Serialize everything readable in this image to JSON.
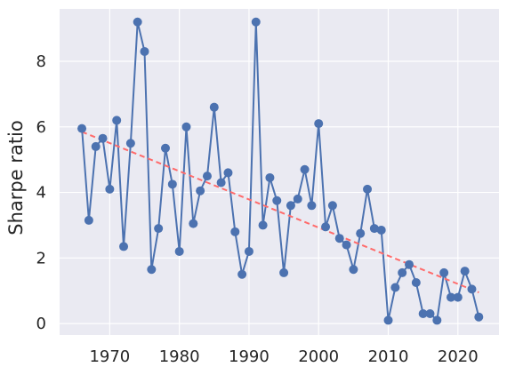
{
  "chart_data": {
    "type": "scatter",
    "title": "",
    "xlabel": "",
    "ylabel": "Sharpe ratio",
    "xlim": [
      1962.8,
      2025.9
    ],
    "ylim": [
      -0.35,
      9.6
    ],
    "x_ticks": [
      1970,
      1980,
      1990,
      2000,
      2010,
      2020
    ],
    "y_ticks": [
      0,
      2,
      4,
      6,
      8
    ],
    "grid": true,
    "legend": "none",
    "colors": {
      "series": "#4c72b0",
      "trend": "#ff6b6b",
      "background": "#eaeaf2",
      "grid": "#ffffff"
    },
    "series": [
      {
        "style": "line-with-markers",
        "x": [
          1966,
          1967,
          1968,
          1969,
          1970,
          1971,
          1972,
          1973,
          1974,
          1975,
          1976,
          1977,
          1978,
          1979,
          1980,
          1981,
          1982,
          1983,
          1984,
          1985,
          1986,
          1987,
          1988,
          1989,
          1990,
          1991,
          1992,
          1993,
          1994,
          1995,
          1996,
          1997,
          1998,
          1999,
          2000,
          2001,
          2002,
          2003,
          2004,
          2005,
          2006,
          2007,
          2008,
          2009,
          2010,
          2011,
          2012,
          2013,
          2014,
          2015,
          2016,
          2017,
          2018,
          2019,
          2020,
          2021,
          2022,
          2023
        ],
        "y": [
          5.95,
          3.15,
          5.4,
          5.65,
          4.1,
          6.2,
          2.35,
          5.5,
          9.2,
          8.3,
          1.65,
          2.9,
          5.35,
          4.25,
          2.2,
          6.0,
          3.05,
          4.05,
          4.5,
          6.6,
          4.3,
          4.6,
          2.8,
          1.5,
          2.2,
          9.2,
          3.0,
          4.45,
          3.75,
          1.55,
          3.6,
          3.8,
          4.7,
          3.6,
          6.1,
          2.95,
          3.6,
          2.6,
          2.4,
          1.65,
          2.75,
          4.1,
          2.9,
          2.85,
          0.1,
          1.1,
          1.55,
          1.8,
          1.25,
          0.3,
          0.3,
          0.1,
          1.55,
          0.8,
          0.8,
          1.6,
          1.05,
          0.2
        ]
      },
      {
        "style": "dashed-trend",
        "x": [
          1966,
          2023
        ],
        "y": [
          5.85,
          0.95
        ]
      }
    ]
  }
}
